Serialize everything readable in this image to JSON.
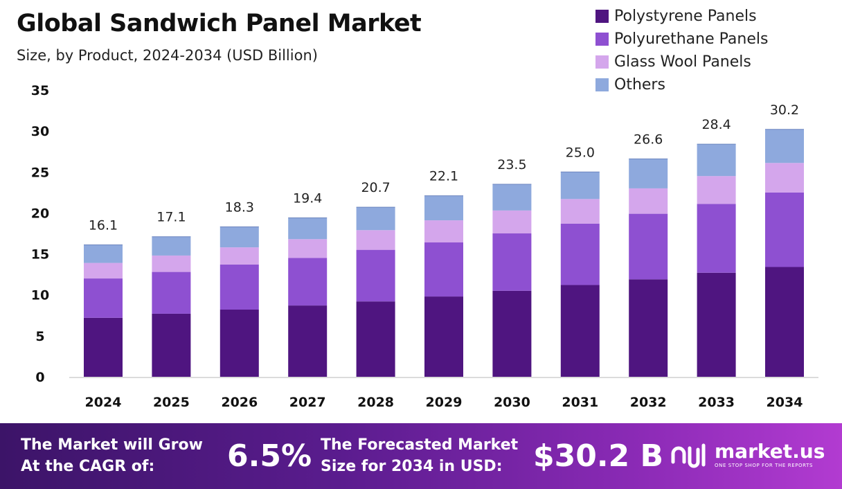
{
  "chart_data": {
    "type": "bar",
    "stacked": true,
    "title": "Global Sandwich Panel Market",
    "subtitle": "Size, by Product, 2024-2034 (USD Billion)",
    "categories": [
      "2024",
      "2025",
      "2026",
      "2027",
      "2028",
      "2029",
      "2030",
      "2031",
      "2032",
      "2033",
      "2034"
    ],
    "totals": [
      "16.1",
      "17.1",
      "18.3",
      "19.4",
      "20.7",
      "22.1",
      "23.5",
      "25.0",
      "26.6",
      "28.4",
      "30.2"
    ],
    "series": [
      {
        "name": "Polystyrene Panels",
        "color": "#4f1580",
        "values": [
          7.2,
          7.7,
          8.2,
          8.7,
          9.2,
          9.8,
          10.5,
          11.2,
          11.9,
          12.7,
          13.4
        ]
      },
      {
        "name": "Polyurethane Panels",
        "color": "#8e50d1",
        "values": [
          4.8,
          5.1,
          5.5,
          5.8,
          6.3,
          6.6,
          7.0,
          7.5,
          8.0,
          8.4,
          9.1
        ]
      },
      {
        "name": "Glass Wool Panels",
        "color": "#d4a6ec",
        "values": [
          1.9,
          2.0,
          2.1,
          2.3,
          2.4,
          2.7,
          2.8,
          3.0,
          3.1,
          3.4,
          3.6
        ]
      },
      {
        "name": "Others",
        "color": "#8ea9dd",
        "values": [
          2.2,
          2.3,
          2.5,
          2.6,
          2.8,
          3.0,
          3.2,
          3.3,
          3.6,
          3.9,
          4.1
        ]
      }
    ],
    "y_ticks": [
      "0",
      "5",
      "10",
      "15",
      "20",
      "25",
      "30",
      "35"
    ],
    "ylim": [
      0,
      35
    ],
    "grid": false,
    "legend": "top-right"
  },
  "footer": {
    "cagr_label_line1": "The Market will Grow",
    "cagr_label_line2": "At the CAGR of:",
    "cagr_value": "6.5%",
    "forecast_label_line1": "The Forecasted Market",
    "forecast_label_line2": "Size for 2034 in USD:",
    "forecast_value": "$30.2 B",
    "brand_name": "market.us",
    "brand_tagline": "ONE STOP SHOP FOR THE REPORTS"
  }
}
